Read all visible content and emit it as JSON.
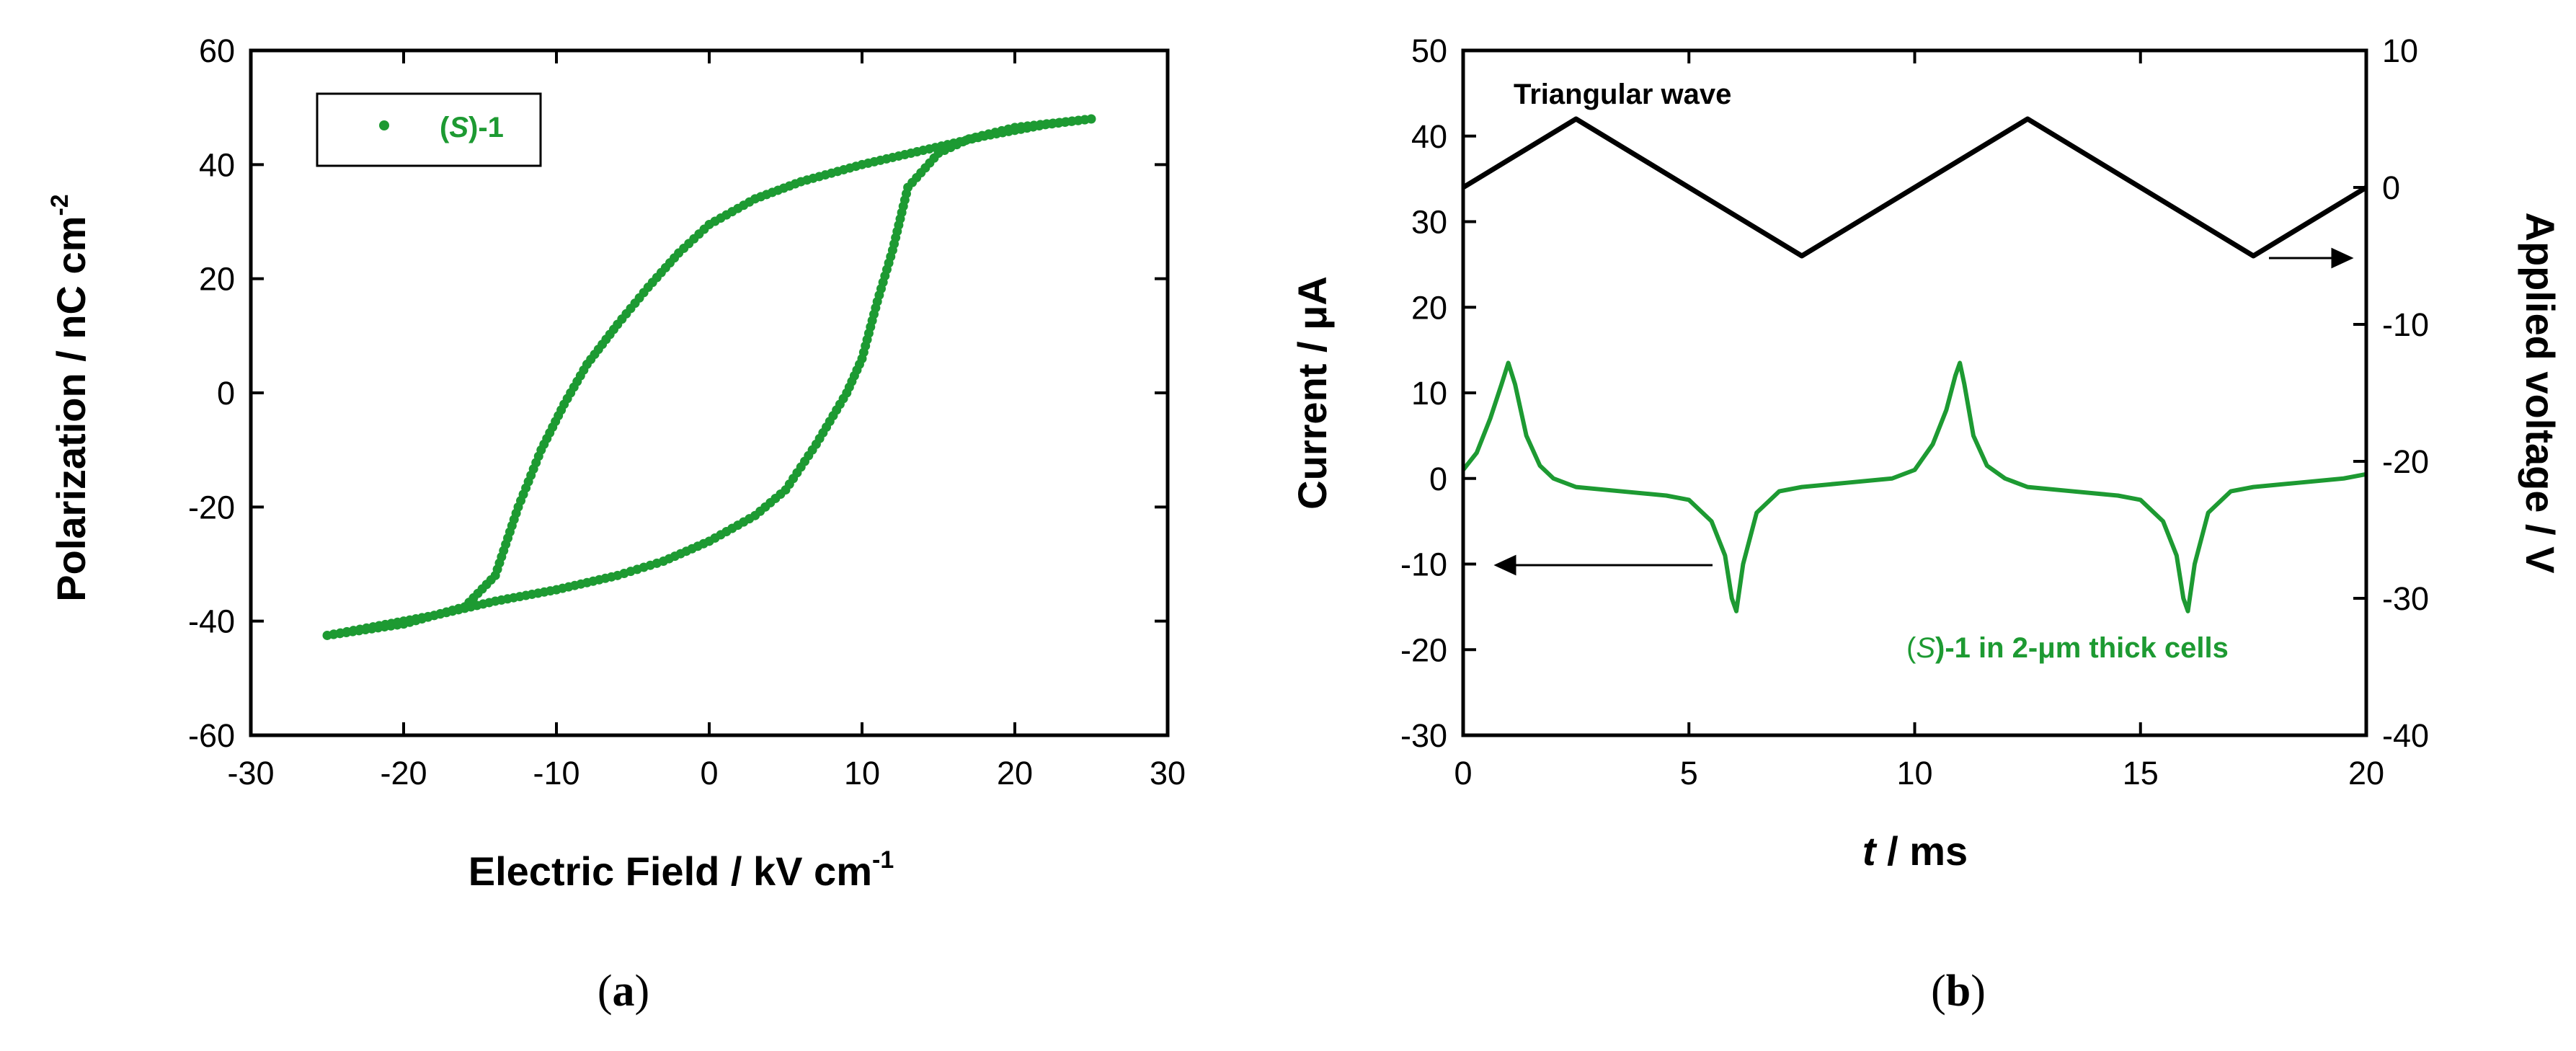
{
  "colors": {
    "series": "#1d9a32",
    "axis": "#000000",
    "background": "#ffffff"
  },
  "chart_data": [
    {
      "type": "scatter",
      "panel": "a",
      "caption_open": "(",
      "caption_letter": "a",
      "caption_close": ")",
      "xlabel": "Electric Field / kV cm",
      "xlabel_sup": "-1",
      "ylabel": "Polarization / nC cm",
      "ylabel_sup": "-2",
      "xlim": [
        -30,
        30
      ],
      "ylim": [
        -60,
        60
      ],
      "xticks": [
        -30,
        -20,
        -10,
        0,
        10,
        20,
        30
      ],
      "yticks": [
        -60,
        -40,
        -20,
        0,
        20,
        40,
        60
      ],
      "legend": {
        "placement": "top-left",
        "open": "(",
        "italic": "S",
        "close": ")-",
        "bold": "1"
      },
      "series": [
        {
          "name": "(S)-1",
          "upper_branch": [
            [
              -25,
              -42.5
            ],
            [
              -20,
              -40.5
            ],
            [
              -16,
              -37.5
            ],
            [
              -14,
              -32
            ],
            [
              -12.5,
              -20
            ],
            [
              -11,
              -10
            ],
            [
              -9.5,
              -2
            ],
            [
              -8,
              5
            ],
            [
              -6,
              12
            ],
            [
              -4,
              18.5
            ],
            [
              -2,
              24.5
            ],
            [
              0,
              29.5
            ],
            [
              3,
              34
            ],
            [
              6,
              37
            ],
            [
              10,
              40
            ],
            [
              14,
              42.5
            ],
            [
              18,
              45
            ],
            [
              22,
              47
            ],
            [
              25,
              48
            ]
          ],
          "lower_branch": [
            [
              25,
              48
            ],
            [
              20,
              46.5
            ],
            [
              17,
              44.5
            ],
            [
              15,
              42
            ],
            [
              13,
              36
            ],
            [
              12,
              25
            ],
            [
              11,
              16
            ],
            [
              10,
              6
            ],
            [
              9,
              0
            ],
            [
              7,
              -9
            ],
            [
              5,
              -17
            ],
            [
              3,
              -21.5
            ],
            [
              0,
              -26
            ],
            [
              -3,
              -29.5
            ],
            [
              -6,
              -32
            ],
            [
              -10,
              -34.5
            ],
            [
              -14,
              -36.5
            ],
            [
              -18,
              -39
            ],
            [
              -22,
              -41
            ],
            [
              -25,
              -42.5
            ]
          ]
        }
      ]
    },
    {
      "type": "line",
      "panel": "b",
      "caption_open": "(",
      "caption_letter": "b",
      "caption_close": ")",
      "xlabel_italic": "t",
      "xlabel": " / ms",
      "ylabel": "Current / μA",
      "y2label": "Applied voltage / V",
      "xlim": [
        0,
        20
      ],
      "ylim": [
        -30,
        50
      ],
      "y2lim": [
        -40,
        10
      ],
      "xticks": [
        0,
        5,
        10,
        15,
        20
      ],
      "yticks": [
        -30,
        -20,
        -10,
        0,
        10,
        20,
        30,
        40,
        50
      ],
      "y2ticks": [
        -40,
        -30,
        -20,
        -10,
        0,
        10
      ],
      "annotations": {
        "wave": "Triangular wave",
        "cell_open": "(",
        "cell_italic": "S",
        "cell_rest": ")-1 in 2-μm thick cells"
      },
      "series": [
        {
          "name": "Triangular wave",
          "axis": "right",
          "x": [
            0,
            2.5,
            7.5,
            12.5,
            17.5,
            20
          ],
          "values": [
            0,
            5,
            -5,
            5,
            -5,
            0
          ]
        },
        {
          "name": "Current",
          "axis": "left",
          "x": [
            0,
            0.3,
            0.6,
            0.85,
            1.0,
            1.15,
            1.4,
            1.7,
            2.0,
            2.5,
            3.5,
            4.5,
            5.0,
            5.5,
            5.8,
            5.95,
            6.05,
            6.2,
            6.5,
            7.0,
            7.5,
            8.5,
            9.5,
            10.0,
            10.4,
            10.7,
            10.9,
            11.0,
            11.1,
            11.3,
            11.6,
            12.0,
            12.5,
            13.5,
            14.5,
            15.0,
            15.5,
            15.8,
            15.95,
            16.05,
            16.2,
            16.5,
            17.0,
            17.5,
            18.5,
            19.5,
            20.0
          ],
          "values": [
            1,
            3,
            7,
            11,
            13.5,
            11,
            5,
            1.5,
            0,
            -1,
            -1.5,
            -2,
            -2.5,
            -5,
            -9,
            -14,
            -15.5,
            -10,
            -4,
            -1.5,
            -1,
            -0.5,
            0,
            1,
            4,
            8,
            12,
            13.5,
            11,
            5,
            1.5,
            0,
            -1,
            -1.5,
            -2,
            -2.5,
            -5,
            -9,
            -14,
            -15.5,
            -10,
            -4,
            -1.5,
            -1,
            -0.5,
            0,
            0.5
          ]
        }
      ]
    }
  ]
}
